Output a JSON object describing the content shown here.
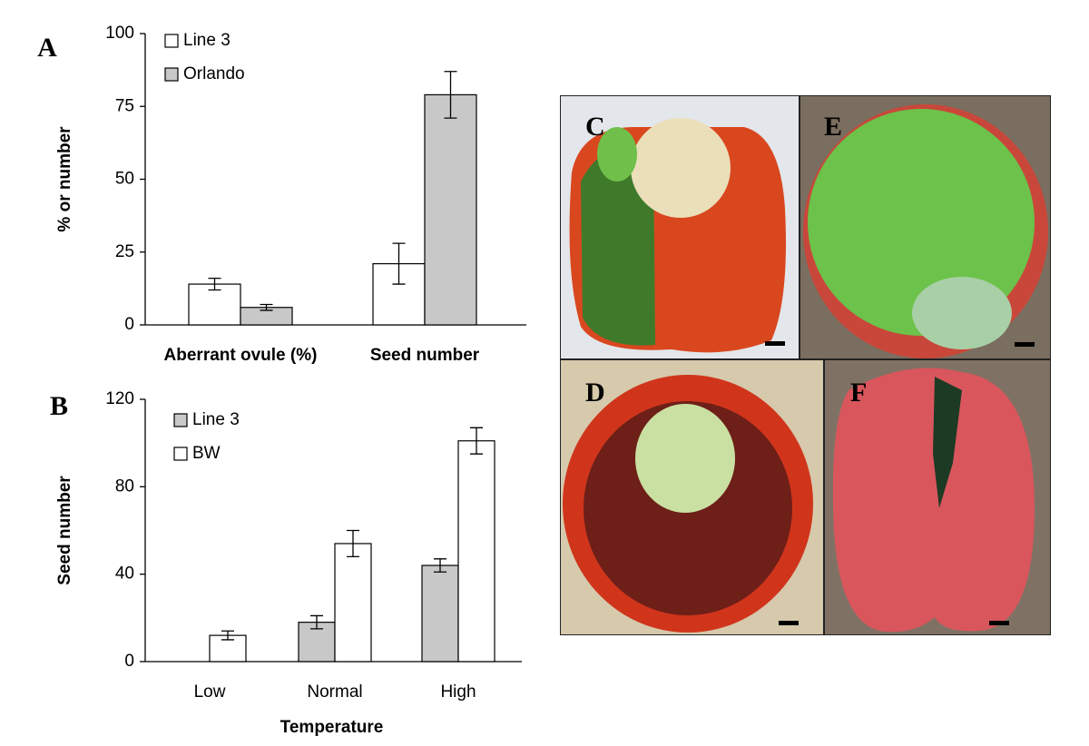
{
  "chart_data": [
    {
      "type": "bar",
      "panel": "A",
      "ylabel": "% or number",
      "categories": [
        "Aberrant ovule (%)",
        "Seed number"
      ],
      "series": [
        {
          "name": "Line 3",
          "color": "#ffffff",
          "values": [
            14,
            21
          ],
          "errors": [
            2,
            7
          ]
        },
        {
          "name": "Orlando",
          "color": "#c8c8c8",
          "values": [
            6,
            79
          ],
          "errors": [
            1,
            8
          ]
        }
      ],
      "ylim": [
        0,
        100
      ],
      "yticks": [
        0,
        25,
        50,
        75,
        100
      ],
      "legend": "upper left"
    },
    {
      "type": "bar",
      "panel": "B",
      "xlabel": "Temperature",
      "ylabel": "Seed number",
      "categories": [
        "Low",
        "Normal",
        "High"
      ],
      "series": [
        {
          "name": "Line 3",
          "color": "#c8c8c8",
          "values": [
            null,
            18,
            44
          ],
          "errors": [
            null,
            3,
            3
          ]
        },
        {
          "name": "BW",
          "color": "#ffffff",
          "values": [
            12,
            54,
            101
          ],
          "errors": [
            2,
            6,
            6
          ]
        }
      ],
      "ylim": [
        0,
        120
      ],
      "yticks": [
        0,
        40,
        80,
        120
      ],
      "legend": "upper left"
    }
  ],
  "photo_panels": {
    "labels": [
      "C",
      "E",
      "D",
      "F"
    ]
  }
}
